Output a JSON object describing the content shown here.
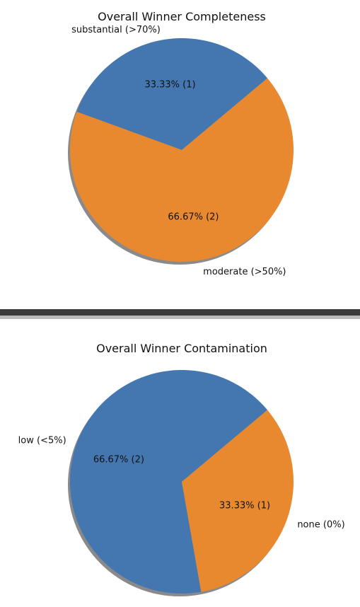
{
  "chart_data": [
    {
      "type": "pie",
      "title": "Overall Winner Completeness",
      "categories": [
        "substantial (>70%)",
        "moderate (>50%)"
      ],
      "values": [
        1,
        2
      ],
      "percent_labels": [
        "33.33%  (1)",
        "66.67%  (2)"
      ],
      "colors": [
        "#4477b0",
        "#e8892f"
      ],
      "shadow": true,
      "start_angle_deg": 40
    },
    {
      "type": "pie",
      "title": "Overall Winner Contamination",
      "categories": [
        "low (<5%)",
        "none (0%)"
      ],
      "values": [
        2,
        1
      ],
      "percent_labels": [
        "66.67%  (2)",
        "33.33%  (1)"
      ],
      "colors": [
        "#4477b0",
        "#e8892f"
      ],
      "shadow": true,
      "start_angle_deg": 40
    }
  ]
}
